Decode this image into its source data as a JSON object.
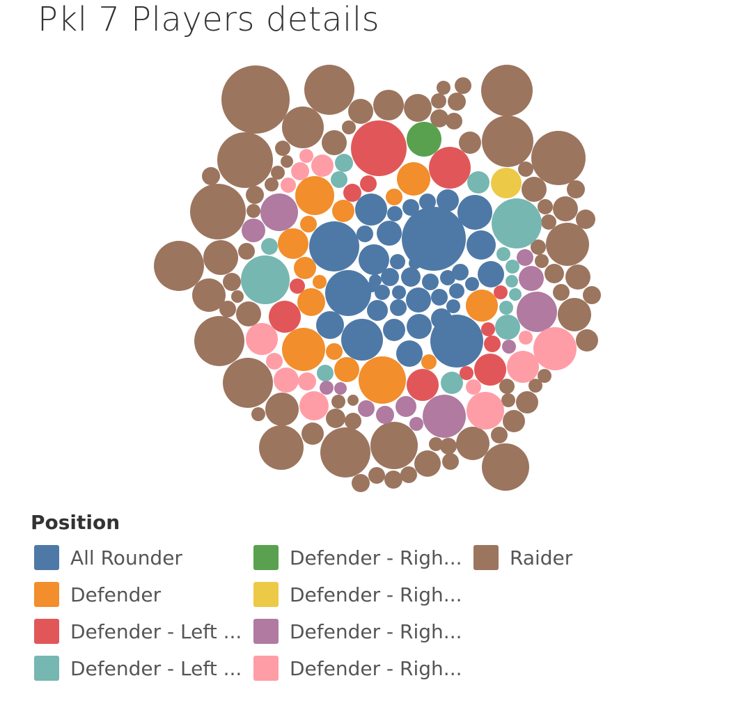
{
  "header": {
    "title": "Pkl 7 Players details"
  },
  "legend": {
    "title": "Position",
    "items": [
      {
        "label": "All Rounder",
        "color": "#4e79a7"
      },
      {
        "label": "Defender",
        "color": "#f28e2b"
      },
      {
        "label": "Defender - Left ...",
        "color": "#e15759"
      },
      {
        "label": "Defender - Left ...",
        "color": "#76b7b2"
      },
      {
        "label": "Defender - Righ...",
        "color": "#59a14f"
      },
      {
        "label": "Defender - Righ...",
        "color": "#edc948"
      },
      {
        "label": "Defender - Righ...",
        "color": "#b07aa1"
      },
      {
        "label": "Defender - Righ...",
        "color": "#ff9da7"
      },
      {
        "label": "Raider",
        "color": "#9c755f"
      }
    ]
  },
  "chart_data": {
    "type": "packed-bubble",
    "title": "Pkl 7 Players details",
    "legend_title": "Position",
    "legend_placement": "bottom",
    "category_count": 9,
    "note_values": "relative bubble sizes estimated from the figure"
  }
}
